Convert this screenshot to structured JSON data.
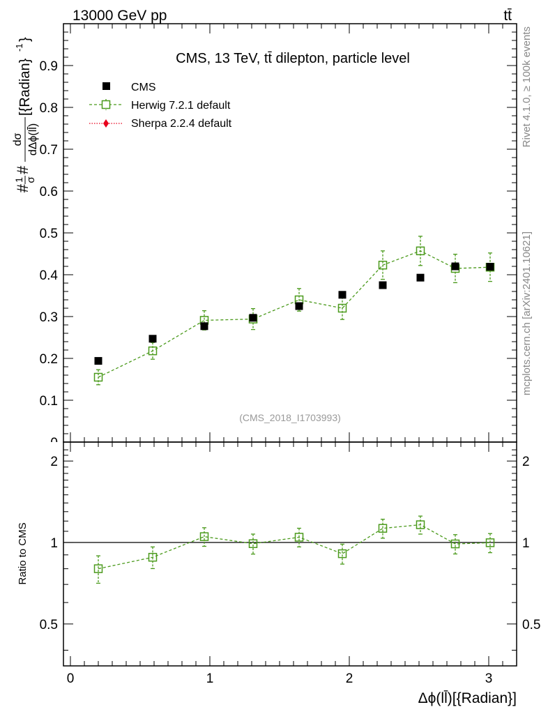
{
  "header": {
    "beam_label": "13000 GeV pp",
    "process_label": "tt̄"
  },
  "side_labels": {
    "rivet": "Rivet 4.1.0, ≥ 100k events",
    "mcplots": "mcplots.cern.ch [arXiv:2401.10621]"
  },
  "chart_data": [
    {
      "type": "scatter",
      "title": "CMS, 13 TeV, tt̄ dilepton, particle level",
      "watermark": "(CMS_2018_I1703993)",
      "ylabel_prefix": "#",
      "ylabel_frac_num": "1",
      "ylabel_frac_den": "σ",
      "ylabel_mid": "#",
      "ylabel_dnum": "dσ",
      "ylabel_dden": "dΔϕ(ll̄)",
      "ylabel_suffix": "[{Radian}",
      "ylabel_exp": "-1",
      "ylabel_close": "}",
      "xlabel": "Δϕ(ll̄)[{Radian}]",
      "xlim": [
        -0.05,
        3.2
      ],
      "ylim": [
        0,
        1.0
      ],
      "y_ticks": [
        0.1,
        0.2,
        0.3,
        0.4,
        0.5,
        0.6,
        0.7,
        0.8,
        0.9
      ],
      "y_tick_labels": [
        "0.1",
        "0.2",
        "0.3",
        "0.4",
        "0.5",
        "0.6",
        "0.7",
        "0.8",
        "0.9"
      ],
      "x_ticks": [
        0,
        1,
        2,
        3
      ],
      "x_tick_labels": [
        "0",
        "1",
        "2",
        "3"
      ],
      "bottom_tick_label": "0",
      "legend": {
        "position": "top-left",
        "entries": [
          "CMS",
          "Herwig 7.2.1 default",
          "Sherpa 2.2.4 default"
        ]
      },
      "series": [
        {
          "name": "CMS",
          "color": "#000000",
          "marker": "filled-square",
          "x": [
            0.2,
            0.59,
            0.96,
            1.31,
            1.64,
            1.95,
            2.24,
            2.51,
            2.76,
            3.01
          ],
          "y": [
            0.194,
            0.247,
            0.277,
            0.297,
            0.325,
            0.352,
            0.375,
            0.393,
            0.42,
            0.419
          ]
        },
        {
          "name": "Herwig 7.2.1 default",
          "color": "#4b9a1c",
          "marker": "open-square",
          "x": [
            0.2,
            0.59,
            0.96,
            1.31,
            1.64,
            1.95,
            2.24,
            2.51,
            2.76,
            3.01
          ],
          "y": [
            0.155,
            0.218,
            0.291,
            0.294,
            0.34,
            0.32,
            0.423,
            0.457,
            0.415,
            0.418
          ],
          "err": [
            0.018,
            0.02,
            0.023,
            0.025,
            0.027,
            0.027,
            0.034,
            0.035,
            0.034,
            0.034
          ]
        },
        {
          "name": "Sherpa 2.2.4 default",
          "color": "#e8001c",
          "marker": "filled-diamond",
          "x": [],
          "y": []
        }
      ]
    },
    {
      "type": "scatter",
      "ylabel": "Ratio to CMS",
      "ylim": [
        0.35,
        2.35
      ],
      "y_ticks": [
        0.5,
        1,
        2
      ],
      "y_tick_labels": [
        "0.5",
        "1",
        "2"
      ],
      "reference_line": 1,
      "series": [
        {
          "name": "Herwig 7.2.1 default / CMS",
          "color": "#4b9a1c",
          "marker": "open-square",
          "x": [
            0.2,
            0.59,
            0.96,
            1.31,
            1.64,
            1.95,
            2.24,
            2.51,
            2.76,
            3.01
          ],
          "y": [
            0.8,
            0.882,
            1.051,
            0.99,
            1.046,
            0.909,
            1.128,
            1.163,
            0.988,
            0.998
          ],
          "err": [
            0.093,
            0.081,
            0.083,
            0.084,
            0.083,
            0.077,
            0.091,
            0.089,
            0.081,
            0.081
          ]
        }
      ]
    }
  ]
}
